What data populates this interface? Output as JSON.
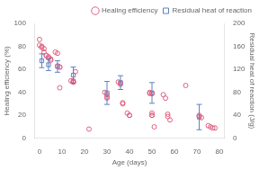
{
  "chart_data": {
    "type": "scatter",
    "xlabel": "Age (days)",
    "ylabel": "Healing efficiency (%)",
    "y2label": "Residual heat of reaction (J/g)",
    "xlim": [
      -2,
      82
    ],
    "xticks": [
      0,
      10,
      20,
      30,
      40,
      50,
      60,
      70,
      80
    ],
    "ylim": [
      0,
      100
    ],
    "yticks": [
      0,
      20,
      40,
      60,
      80,
      100
    ],
    "y2lim": [
      0,
      200
    ],
    "y2ticks": [
      0,
      40,
      80,
      120,
      160,
      200
    ],
    "grid": false,
    "legend": "upper right",
    "series": [
      {
        "name": "Healing efficiency",
        "color": "#e06080",
        "marker": "circle",
        "x": [
          0,
          0,
          1,
          1,
          2,
          2,
          3,
          3,
          4,
          4,
          5,
          5,
          7,
          8,
          8,
          9,
          9,
          9,
          14,
          15,
          15,
          15,
          15,
          16,
          22,
          29,
          30,
          30,
          30,
          35,
          36,
          36,
          37,
          37,
          39,
          40,
          40,
          49,
          49,
          50,
          50,
          50,
          50,
          51,
          50,
          55,
          56,
          57,
          57,
          58,
          65,
          71,
          71,
          72,
          75,
          76,
          77,
          78
        ],
        "values": [
          86,
          81,
          80,
          79,
          78,
          75,
          72,
          72,
          71,
          70,
          69,
          68,
          75,
          74,
          63,
          62,
          62,
          44,
          50,
          50,
          49,
          49,
          49,
          58,
          8,
          40,
          38,
          36,
          35,
          49,
          48,
          47,
          31,
          30,
          22,
          20,
          20,
          40,
          39,
          39,
          22,
          20,
          20,
          10,
          39,
          38,
          35,
          21,
          19,
          16,
          46,
          20,
          19,
          18,
          11,
          10,
          9,
          9
        ]
      },
      {
        "name": "Residual heat of reaction",
        "color": "#6080c0",
        "marker": "square",
        "axis": "y2",
        "x": [
          1,
          4,
          8,
          15,
          30,
          36,
          50,
          71
        ],
        "values": [
          135,
          128,
          125,
          110,
          79,
          97,
          79,
          37
        ],
        "yerr_low": [
          12,
          10,
          10,
          14,
          20,
          12,
          18,
          22
        ],
        "yerr_high": [
          12,
          10,
          10,
          14,
          20,
          12,
          18,
          22
        ]
      }
    ]
  }
}
